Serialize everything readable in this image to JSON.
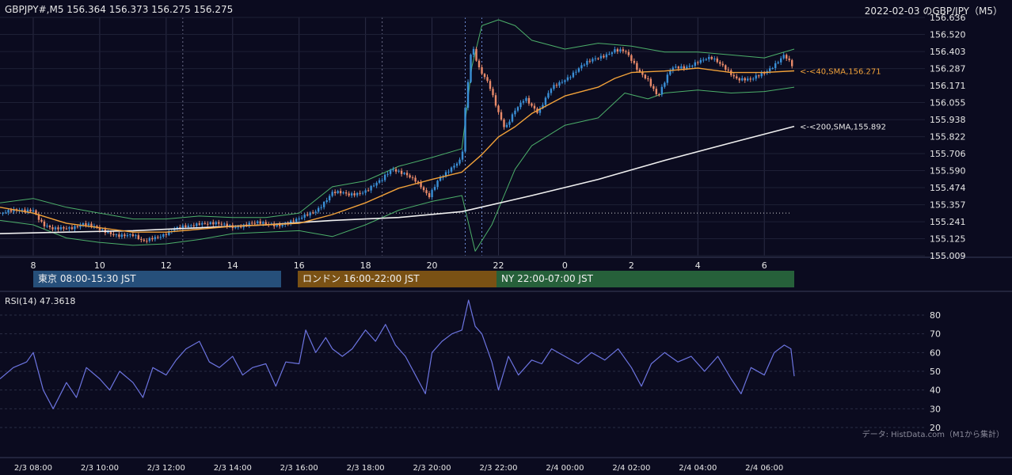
{
  "header": {
    "symbol_info": "GBPJPY#,M5 156.364 156.373 156.275 156.275",
    "title": "2022-02-03 のGBP/JPY（M5）"
  },
  "sessions": [
    {
      "label": "東京 08:00-15:30 JST",
      "color": "#264f7a"
    },
    {
      "label": "ロンドン 16:00-22:00 JST",
      "color": "#7a5114"
    },
    {
      "label": "NY 22:00-07:00 JST",
      "color": "#26603a"
    }
  ],
  "rsi_panel": {
    "label": "RSI(14) 47.3618"
  },
  "source_note": "データ: HistData.com（M1から集計）",
  "colors": {
    "background": "#0b0b1f",
    "bull": "#3a8fd6",
    "bear": "#e98a6a",
    "sma40": "#f2a23a",
    "sma200": "#f0f0f0",
    "bollinger": "#4caf6a",
    "rsi": "#6c74e0"
  },
  "chart_data": [
    {
      "type": "candlestick",
      "title": "GBPJPY#,M5",
      "ylim": [
        155.009,
        156.636
      ],
      "y_ticks": [
        156.636,
        156.52,
        156.403,
        156.287,
        156.171,
        156.055,
        155.938,
        155.822,
        155.706,
        155.59,
        155.474,
        155.357,
        155.241,
        155.125,
        155.009
      ],
      "x_tick_labels": [
        "8",
        "10",
        "12",
        "14",
        "16",
        "18",
        "20",
        "22",
        "0",
        "2",
        "4",
        "6"
      ],
      "x_ticks_hours": [
        8,
        10,
        12,
        14,
        16,
        18,
        20,
        22,
        24,
        26,
        28,
        30
      ],
      "x_range_hours": [
        7,
        30.9
      ],
      "last_candle": {
        "open": 156.364,
        "high": 156.373,
        "low": 156.275,
        "close": 156.275
      },
      "price_path": [
        [
          7.0,
          155.3
        ],
        [
          7.5,
          155.31
        ],
        [
          8.0,
          155.33
        ],
        [
          8.3,
          155.22
        ],
        [
          8.6,
          155.18
        ],
        [
          9.0,
          155.2
        ],
        [
          9.5,
          155.23
        ],
        [
          10.0,
          155.18
        ],
        [
          10.5,
          155.16
        ],
        [
          11.0,
          155.14
        ],
        [
          11.3,
          155.1
        ],
        [
          11.6,
          155.14
        ],
        [
          12.0,
          155.16
        ],
        [
          12.5,
          155.2
        ],
        [
          13.0,
          155.24
        ],
        [
          13.5,
          155.22
        ],
        [
          14.0,
          155.21
        ],
        [
          14.5,
          155.23
        ],
        [
          15.0,
          155.22
        ],
        [
          15.5,
          155.23
        ],
        [
          16.0,
          155.25
        ],
        [
          16.5,
          155.32
        ],
        [
          17.0,
          155.44
        ],
        [
          17.5,
          155.42
        ],
        [
          18.0,
          155.46
        ],
        [
          18.5,
          155.52
        ],
        [
          18.8,
          155.6
        ],
        [
          19.2,
          155.58
        ],
        [
          19.5,
          155.52
        ],
        [
          19.9,
          155.4
        ],
        [
          20.2,
          155.54
        ],
        [
          20.5,
          155.6
        ],
        [
          20.9,
          155.66
        ],
        [
          21.0,
          156.0
        ],
        [
          21.2,
          156.45
        ],
        [
          21.4,
          156.3
        ],
        [
          21.7,
          156.2
        ],
        [
          22.0,
          155.98
        ],
        [
          22.2,
          155.86
        ],
        [
          22.5,
          156.0
        ],
        [
          22.8,
          156.1
        ],
        [
          23.2,
          155.98
        ],
        [
          23.6,
          156.15
        ],
        [
          24.0,
          156.22
        ],
        [
          24.5,
          156.3
        ],
        [
          25.0,
          156.36
        ],
        [
          25.5,
          156.42
        ],
        [
          25.8,
          156.4
        ],
        [
          26.2,
          156.27
        ],
        [
          26.5,
          156.22
        ],
        [
          26.8,
          156.1
        ],
        [
          27.2,
          156.28
        ],
        [
          27.6,
          156.3
        ],
        [
          28.0,
          156.34
        ],
        [
          28.4,
          156.35
        ],
        [
          28.8,
          156.3
        ],
        [
          29.2,
          156.22
        ],
        [
          29.6,
          156.2
        ],
        [
          30.0,
          156.26
        ],
        [
          30.3,
          156.32
        ],
        [
          30.6,
          156.38
        ],
        [
          30.9,
          156.275
        ]
      ],
      "sma40": {
        "label": "<-<40,SMA,156.271",
        "last": 156.271,
        "path": [
          [
            7.0,
            155.34
          ],
          [
            8.0,
            155.3
          ],
          [
            9.0,
            155.23
          ],
          [
            10.0,
            155.2
          ],
          [
            11.0,
            155.17
          ],
          [
            12.0,
            155.17
          ],
          [
            13.0,
            155.19
          ],
          [
            14.0,
            155.21
          ],
          [
            15.0,
            155.22
          ],
          [
            16.0,
            155.23
          ],
          [
            17.0,
            155.29
          ],
          [
            18.0,
            155.37
          ],
          [
            19.0,
            155.47
          ],
          [
            20.0,
            155.53
          ],
          [
            20.9,
            155.58
          ],
          [
            21.5,
            155.7
          ],
          [
            22.0,
            155.82
          ],
          [
            22.5,
            155.89
          ],
          [
            23.0,
            155.98
          ],
          [
            24.0,
            156.1
          ],
          [
            25.0,
            156.16
          ],
          [
            25.5,
            156.22
          ],
          [
            26.0,
            156.26
          ],
          [
            27.0,
            156.27
          ],
          [
            28.0,
            156.29
          ],
          [
            29.0,
            156.26
          ],
          [
            30.0,
            156.26
          ],
          [
            30.9,
            156.271
          ]
        ]
      },
      "sma200": {
        "label": "<-<200,SMA,155.892",
        "last": 155.892,
        "path": [
          [
            7.0,
            155.16
          ],
          [
            9.0,
            155.17
          ],
          [
            11.0,
            155.18
          ],
          [
            13.0,
            155.2
          ],
          [
            15.0,
            155.22
          ],
          [
            17.0,
            155.25
          ],
          [
            19.0,
            155.27
          ],
          [
            20.9,
            155.31
          ],
          [
            23.0,
            155.42
          ],
          [
            25.0,
            155.53
          ],
          [
            27.0,
            155.66
          ],
          [
            29.0,
            155.78
          ],
          [
            30.9,
            155.892
          ]
        ]
      },
      "bollinger_upper": [
        [
          7.0,
          155.37
        ],
        [
          8.0,
          155.4
        ],
        [
          9.0,
          155.34
        ],
        [
          10.0,
          155.3
        ],
        [
          11.0,
          155.26
        ],
        [
          12.0,
          155.26
        ],
        [
          13.0,
          155.28
        ],
        [
          14.0,
          155.27
        ],
        [
          15.0,
          155.27
        ],
        [
          16.0,
          155.3
        ],
        [
          17.0,
          155.48
        ],
        [
          18.0,
          155.52
        ],
        [
          19.0,
          155.62
        ],
        [
          20.0,
          155.68
        ],
        [
          20.9,
          155.74
        ],
        [
          21.2,
          156.3
        ],
        [
          21.5,
          156.58
        ],
        [
          22.0,
          156.62
        ],
        [
          22.5,
          156.58
        ],
        [
          23.0,
          156.48
        ],
        [
          24.0,
          156.42
        ],
        [
          25.0,
          156.46
        ],
        [
          26.0,
          156.44
        ],
        [
          27.0,
          156.4
        ],
        [
          28.0,
          156.4
        ],
        [
          29.0,
          156.38
        ],
        [
          30.0,
          156.36
        ],
        [
          30.9,
          156.42
        ]
      ],
      "bollinger_lower": [
        [
          7.0,
          155.25
        ],
        [
          8.0,
          155.22
        ],
        [
          9.0,
          155.13
        ],
        [
          10.0,
          155.1
        ],
        [
          11.0,
          155.08
        ],
        [
          12.0,
          155.09
        ],
        [
          13.0,
          155.12
        ],
        [
          14.0,
          155.16
        ],
        [
          15.0,
          155.17
        ],
        [
          16.0,
          155.18
        ],
        [
          17.0,
          155.14
        ],
        [
          18.0,
          155.22
        ],
        [
          19.0,
          155.32
        ],
        [
          20.0,
          155.38
        ],
        [
          20.9,
          155.42
        ],
        [
          21.3,
          155.04
        ],
        [
          21.8,
          155.22
        ],
        [
          22.5,
          155.6
        ],
        [
          23.0,
          155.76
        ],
        [
          24.0,
          155.9
        ],
        [
          25.0,
          155.95
        ],
        [
          25.8,
          156.12
        ],
        [
          26.5,
          156.08
        ],
        [
          27.0,
          156.12
        ],
        [
          28.0,
          156.14
        ],
        [
          29.0,
          156.12
        ],
        [
          30.0,
          156.13
        ],
        [
          30.9,
          156.16
        ]
      ],
      "reference_level": 155.3
    },
    {
      "type": "line",
      "title": "RSI(14) 47.3618",
      "ylim": [
        20,
        80
      ],
      "y_ticks": [
        20,
        30,
        40,
        50,
        60,
        70,
        80
      ],
      "x_tick_labels": [
        "2/3 08:00",
        "2/3 10:00",
        "2/3 12:00",
        "2/3 14:00",
        "2/3 16:00",
        "2/3 18:00",
        "2/3 20:00",
        "2/3 22:00",
        "2/4 00:00",
        "2/4 02:00",
        "2/4 04:00",
        "2/4 06:00"
      ],
      "x_ticks_hours": [
        8,
        10,
        12,
        14,
        16,
        18,
        20,
        22,
        24,
        26,
        28,
        30
      ],
      "x_range_hours": [
        7,
        30.9
      ],
      "series": [
        {
          "values": [
            [
              7.0,
              46
            ],
            [
              7.4,
              52
            ],
            [
              7.8,
              55
            ],
            [
              8.0,
              60
            ],
            [
              8.3,
              40
            ],
            [
              8.6,
              30
            ],
            [
              9.0,
              44
            ],
            [
              9.3,
              36
            ],
            [
              9.6,
              52
            ],
            [
              10.0,
              46
            ],
            [
              10.3,
              40
            ],
            [
              10.6,
              50
            ],
            [
              11.0,
              44
            ],
            [
              11.3,
              36
            ],
            [
              11.6,
              52
            ],
            [
              12.0,
              48
            ],
            [
              12.3,
              56
            ],
            [
              12.6,
              62
            ],
            [
              13.0,
              66
            ],
            [
              13.3,
              55
            ],
            [
              13.6,
              52
            ],
            [
              14.0,
              58
            ],
            [
              14.3,
              48
            ],
            [
              14.6,
              52
            ],
            [
              15.0,
              54
            ],
            [
              15.3,
              42
            ],
            [
              15.6,
              55
            ],
            [
              16.0,
              54
            ],
            [
              16.2,
              72
            ],
            [
              16.5,
              60
            ],
            [
              16.8,
              68
            ],
            [
              17.0,
              62
            ],
            [
              17.3,
              58
            ],
            [
              17.6,
              62
            ],
            [
              18.0,
              72
            ],
            [
              18.3,
              66
            ],
            [
              18.6,
              75
            ],
            [
              18.9,
              64
            ],
            [
              19.2,
              58
            ],
            [
              19.5,
              48
            ],
            [
              19.8,
              38
            ],
            [
              20.0,
              60
            ],
            [
              20.3,
              66
            ],
            [
              20.6,
              70
            ],
            [
              20.9,
              72
            ],
            [
              21.1,
              88
            ],
            [
              21.3,
              74
            ],
            [
              21.5,
              70
            ],
            [
              21.8,
              55
            ],
            [
              22.0,
              40
            ],
            [
              22.3,
              58
            ],
            [
              22.6,
              48
            ],
            [
              23.0,
              56
            ],
            [
              23.3,
              54
            ],
            [
              23.6,
              62
            ],
            [
              24.0,
              58
            ],
            [
              24.4,
              54
            ],
            [
              24.8,
              60
            ],
            [
              25.2,
              56
            ],
            [
              25.6,
              62
            ],
            [
              26.0,
              52
            ],
            [
              26.3,
              42
            ],
            [
              26.6,
              54
            ],
            [
              27.0,
              60
            ],
            [
              27.4,
              55
            ],
            [
              27.8,
              58
            ],
            [
              28.2,
              50
            ],
            [
              28.6,
              58
            ],
            [
              29.0,
              46
            ],
            [
              29.3,
              38
            ],
            [
              29.6,
              52
            ],
            [
              30.0,
              48
            ],
            [
              30.3,
              60
            ],
            [
              30.6,
              64
            ],
            [
              30.8,
              62
            ],
            [
              30.9,
              47.36
            ]
          ]
        }
      ]
    }
  ]
}
